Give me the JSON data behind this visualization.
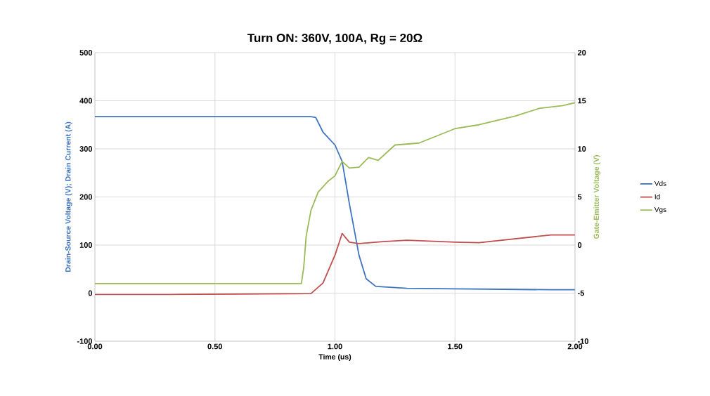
{
  "chart_data": {
    "type": "line",
    "title": "Turn ON: 360V, 100A, Rg = 20Ω",
    "xlabel": "Time (us)",
    "ylabel": "Drain-Source Voltage (V); Drain Current (A)",
    "y2label": "Gate-Emitter Voltage (V)",
    "xlim": [
      0,
      2
    ],
    "xticks": [
      {
        "value": 0,
        "label": "0.00"
      },
      {
        "value": 0.5,
        "label": "0.50"
      },
      {
        "value": 1,
        "label": "1.00"
      },
      {
        "value": 1.5,
        "label": "1.50"
      },
      {
        "value": 2,
        "label": "2.00"
      }
    ],
    "ylim": [
      -100,
      500
    ],
    "yticks": [
      -100,
      0,
      100,
      200,
      300,
      400,
      500
    ],
    "y2lim": [
      -10,
      20
    ],
    "y2ticks": [
      -10,
      -5,
      0,
      5,
      10,
      15,
      20
    ],
    "grid": true,
    "legend": "right",
    "marker": "none",
    "line_style": "solid",
    "series": [
      {
        "name": "Vds",
        "color": "#3e74c0",
        "x": [
          0,
          0.2,
          0.4,
          0.6,
          0.8,
          0.9,
          0.92,
          0.95,
          1.0,
          1.03,
          1.06,
          1.1,
          1.13,
          1.17,
          1.3,
          1.5,
          1.7,
          1.9,
          2.0
        ],
        "values": [
          367,
          367,
          367,
          367,
          367,
          367,
          365,
          335,
          308,
          274,
          186,
          79,
          30,
          14,
          10,
          9,
          8,
          7,
          7
        ]
      },
      {
        "name": "Id",
        "color": "#c0504d",
        "x": [
          0,
          0.3,
          0.6,
          0.9,
          0.95,
          1.0,
          1.03,
          1.06,
          1.1,
          1.2,
          1.3,
          1.5,
          1.6,
          1.75,
          1.9,
          2.0
        ],
        "values": [
          -3,
          -3,
          -2,
          -1,
          21,
          79,
          124,
          106,
          103,
          107,
          110,
          106,
          105,
          113,
          121,
          121
        ]
      },
      {
        "name": "Vgs",
        "color": "#9bbb59",
        "axis": "y2",
        "x": [
          0,
          0.3,
          0.6,
          0.86,
          0.87,
          0.88,
          0.9,
          0.93,
          0.97,
          1.0,
          1.03,
          1.06,
          1.1,
          1.14,
          1.18,
          1.25,
          1.35,
          1.5,
          1.6,
          1.75,
          1.85,
          1.95,
          2.0
        ],
        "values": [
          -4.0,
          -4.0,
          -4.0,
          -4.0,
          -2.3,
          0.9,
          3.6,
          5.5,
          6.6,
          7.2,
          8.7,
          8.0,
          8.1,
          9.1,
          8.8,
          10.4,
          10.6,
          12.1,
          12.5,
          13.4,
          14.2,
          14.5,
          14.8
        ]
      }
    ]
  }
}
